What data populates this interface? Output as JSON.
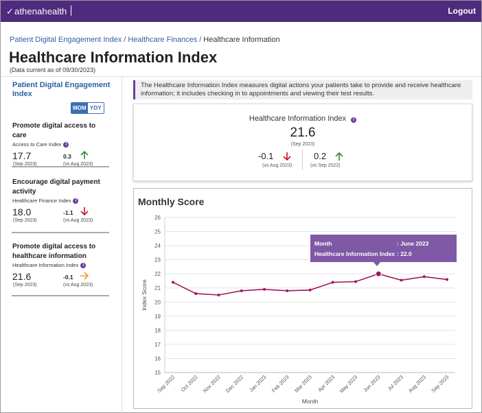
{
  "header": {
    "logo_text": "athenahealth",
    "logout_label": "Logout",
    "bg_color": "#4f2a7d"
  },
  "breadcrumb": {
    "items": [
      "Patient Digital Engagement Index",
      "Healthcare Finances",
      "Healthcare Information"
    ]
  },
  "page": {
    "title": "Healthcare Information Index",
    "data_current": "(Data current as of 09/30/2023)"
  },
  "sidebar": {
    "title": "Patient Digital Engagement Index",
    "toggle": {
      "options": [
        "MOM",
        "YOY"
      ],
      "selected": "MOM"
    },
    "metrics": [
      {
        "title": "Promote digital access to care",
        "sub": "Access to Care Index",
        "value": "17.7",
        "value_sub": "(Sep 2023)",
        "change": "0.3",
        "change_sub": "(vs Aug 2023)",
        "direction": "up"
      },
      {
        "title": "Encourage digital payment activity",
        "sub": "Healthcare Finance Index",
        "value": "18.0",
        "value_sub": "(Sep 2023)",
        "change": "-1.1",
        "change_sub": "(vs Aug 2023)",
        "direction": "down"
      },
      {
        "title": "Promote digital access to healthcare information",
        "sub": "Healthcare Information Index",
        "value": "21.6",
        "value_sub": "(Sep 2023)",
        "change": "-0.1",
        "change_sub": "(vs Aug 2023)",
        "direction": "flat"
      }
    ]
  },
  "description": "The Healthcare Information Index measures digital actions your patients take to provide and receive healthcare information; it includes checking in to appointments and viewing their test results.",
  "summary": {
    "title": "Healthcare Information Index",
    "value": "21.6",
    "value_sub": "(Sep 2023)",
    "mom_change": "-0.1",
    "mom_sub": "(vs Aug 2023)",
    "yoy_change": "0.2",
    "yoy_sub": "(vs Sep 2022)"
  },
  "colors": {
    "up": "#2e8b2e",
    "down": "#c0142c",
    "flat": "#e8a030",
    "line": "#a1165e",
    "accent": "#6b3fa0"
  },
  "chart_data": {
    "type": "line",
    "title": "Monthly Score",
    "xlabel": "Month",
    "ylabel": "Index Score",
    "categories": [
      "Sep 2022",
      "Oct 2022",
      "Nov 2022",
      "Dec 2022",
      "Jan 2023",
      "Feb 2023",
      "Mar 2023",
      "Apr 2023",
      "May 2023",
      "Jun 2023",
      "Jul 2023",
      "Aug 2023",
      "Sep 2023"
    ],
    "series": [
      {
        "values": [
          21.4,
          20.6,
          20.5,
          20.8,
          20.9,
          20.8,
          20.85,
          21.4,
          21.45,
          22.0,
          21.55,
          21.8,
          21.6
        ]
      }
    ],
    "ylim": [
      15,
      26
    ],
    "yticks": [
      15,
      16,
      17,
      18,
      19,
      20,
      21,
      22,
      23,
      24,
      25,
      26
    ],
    "grid": true
  },
  "tooltip": {
    "month_label": "Month",
    "month_value": ": June 2023",
    "index_label": "Healthcare Information Index",
    "index_value": ": 22.0"
  }
}
